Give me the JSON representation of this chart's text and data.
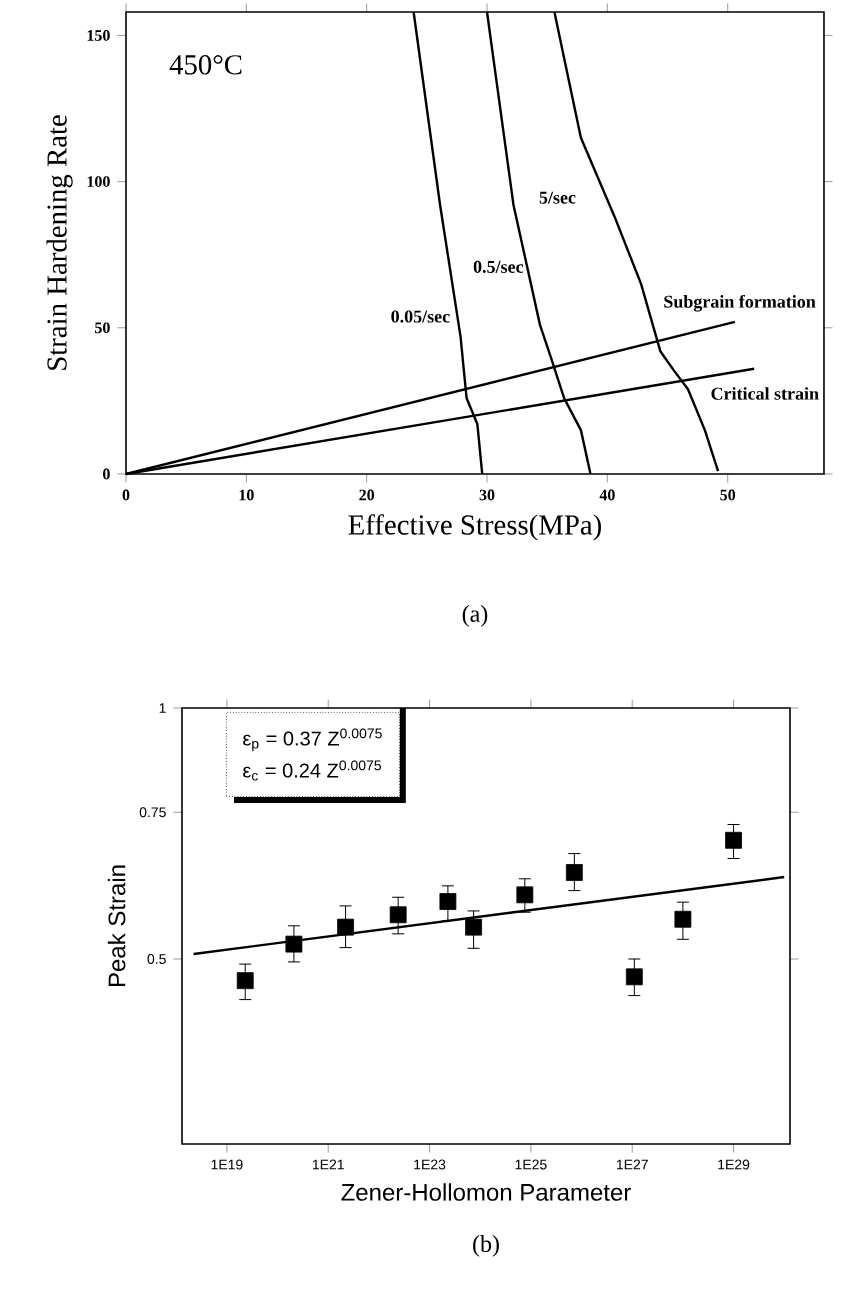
{
  "chart_data": [
    {
      "type": "line",
      "xlabel": "Effective Stress(MPa)",
      "ylabel": "Strain Hardening Rate",
      "xlim": [
        0,
        58
      ],
      "ylim": [
        0,
        158
      ],
      "xticks": [
        0,
        10,
        20,
        30,
        40,
        50
      ],
      "yticks": [
        0,
        50,
        100,
        150
      ],
      "marker": "none",
      "line_style": "solid",
      "series": [
        {
          "name": "0.05/sec",
          "color": "#000000",
          "x": [
            23.9,
            26.1,
            27.8,
            28.3,
            29.2,
            29.6
          ],
          "values": [
            158,
            92,
            47,
            26,
            17,
            0
          ]
        },
        {
          "name": "0.5/sec",
          "color": "#000000",
          "x": [
            30.0,
            32.2,
            34.4,
            35.3,
            36.4,
            37.8,
            38.6
          ],
          "values": [
            158,
            92,
            51,
            40,
            26,
            15,
            0
          ]
        },
        {
          "name": "5/sec",
          "color": "#000000",
          "x": [
            35.6,
            37.8,
            40.6,
            42.8,
            44.4,
            45.6,
            46.7,
            48.1,
            49.2
          ],
          "values": [
            158,
            115,
            88,
            65,
            42,
            35,
            29,
            15,
            1
          ]
        },
        {
          "name": "Subgrain formation",
          "color": "#000000",
          "x": [
            0,
            50.6
          ],
          "values": [
            0,
            52
          ]
        },
        {
          "name": "Critical strain",
          "color": "#000000",
          "x": [
            0,
            52.2
          ],
          "values": [
            0,
            36
          ]
        }
      ],
      "annotations": [
        "450°C",
        "(a)"
      ]
    },
    {
      "type": "scatter",
      "xlabel": "Zener-Hollomon Parameter",
      "ylabel": "Peak Strain",
      "log": "xy",
      "xlim": [
        1.3e+18,
        1.3e+30
      ],
      "ylim": [
        0.3,
        1
      ],
      "xticks": [
        {
          "value": 1e+19,
          "label": "1E19"
        },
        {
          "value": 1e+21,
          "label": "1E21"
        },
        {
          "value": 1e+23,
          "label": "1E23"
        },
        {
          "value": 1e+25,
          "label": "1E25"
        },
        {
          "value": 1e+27,
          "label": "1E27"
        },
        {
          "value": 1e+29,
          "label": "1E29"
        }
      ],
      "yticks": [
        0.5,
        0.75,
        1
      ],
      "marker": "square",
      "series": [
        {
          "color": "#000000",
          "x": [
            2.3e+19,
            2.1e+20,
            2.2e+21,
            2.4e+22,
            2.3e+23,
            7.4e+23,
            7.6e+24,
            7.2e+25,
            1.1e+27,
            1e+28,
            1e+29
          ],
          "values": [
            0.471,
            0.521,
            0.546,
            0.565,
            0.586,
            0.546,
            0.597,
            0.635,
            0.476,
            0.558,
            0.694
          ],
          "errors": [
            [
              0.447,
              0.493
            ],
            [
              0.496,
              0.548
            ],
            [
              0.516,
              0.579
            ],
            [
              0.536,
              0.593
            ],
            [
              0.556,
              0.612
            ],
            [
              0.515,
              0.571
            ],
            [
              0.569,
              0.624
            ],
            [
              0.604,
              0.669
            ],
            [
              0.452,
              0.5
            ],
            [
              0.528,
              0.585
            ],
            [
              0.66,
              0.725
            ]
          ]
        },
        {
          "type": "line",
          "marker": "none",
          "color": "#000000",
          "x": [
            2.2e+18,
            1e+30
          ],
          "values": [
            0.507,
            0.627
          ]
        }
      ],
      "annotations": [
        "ε$_{p}$ = 0.37 Z$^{0.0075}$",
        "ε$_{c}$ = 0.24 Z$^{0.0075}$",
        "(b)"
      ]
    }
  ]
}
